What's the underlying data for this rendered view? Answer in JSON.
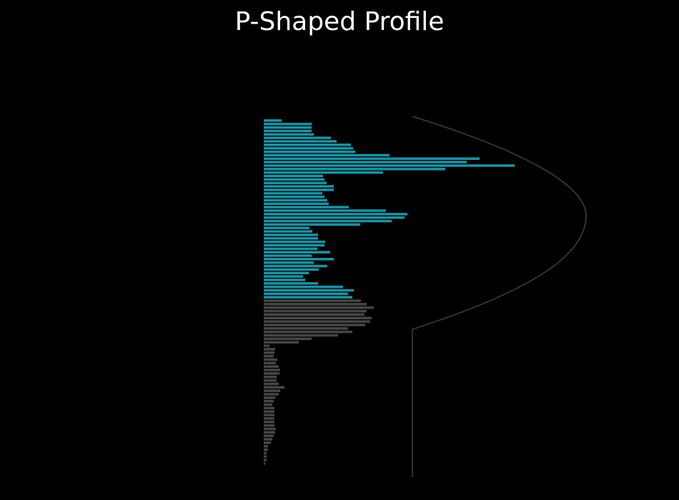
{
  "chart_data": {
    "type": "bar",
    "orientation": "horizontal",
    "title": "P-Shaped Profile",
    "xlabel": "",
    "ylabel": "",
    "axes_visible": false,
    "grid": false,
    "legend": "none",
    "colors": {
      "background": "#000000",
      "highlight": "#1f8fa0",
      "base": "#454545",
      "outline": "#3c3c3c",
      "title": "#ffffff"
    },
    "series": [
      {
        "role": "highlight",
        "values": [
          25,
          67,
          67,
          67,
          70,
          94,
          102,
          122,
          125,
          128,
          176,
          302,
          284,
          351,
          254,
          167,
          83,
          85,
          88,
          98,
          98,
          82,
          85,
          89,
          91,
          119,
          171,
          201,
          197,
          179,
          135,
          64,
          68,
          76,
          76,
          86,
          85,
          75,
          93,
          67,
          98,
          70,
          89,
          77,
          63,
          55,
          58,
          76,
          111,
          126,
          118,
          124
        ]
      },
      {
        "role": "base",
        "values": [
          136,
          144,
          154,
          144,
          141,
          151,
          149,
          142,
          118,
          124,
          104,
          67,
          49,
          8,
          16,
          15,
          14,
          19,
          17,
          21,
          23,
          22,
          18,
          18,
          21,
          29,
          23,
          21,
          16,
          14,
          12,
          15,
          15,
          15,
          15,
          15,
          15,
          17,
          16,
          14,
          12,
          10,
          6,
          6,
          4,
          4,
          4,
          2
        ]
      }
    ],
    "outline_shape": "P"
  }
}
